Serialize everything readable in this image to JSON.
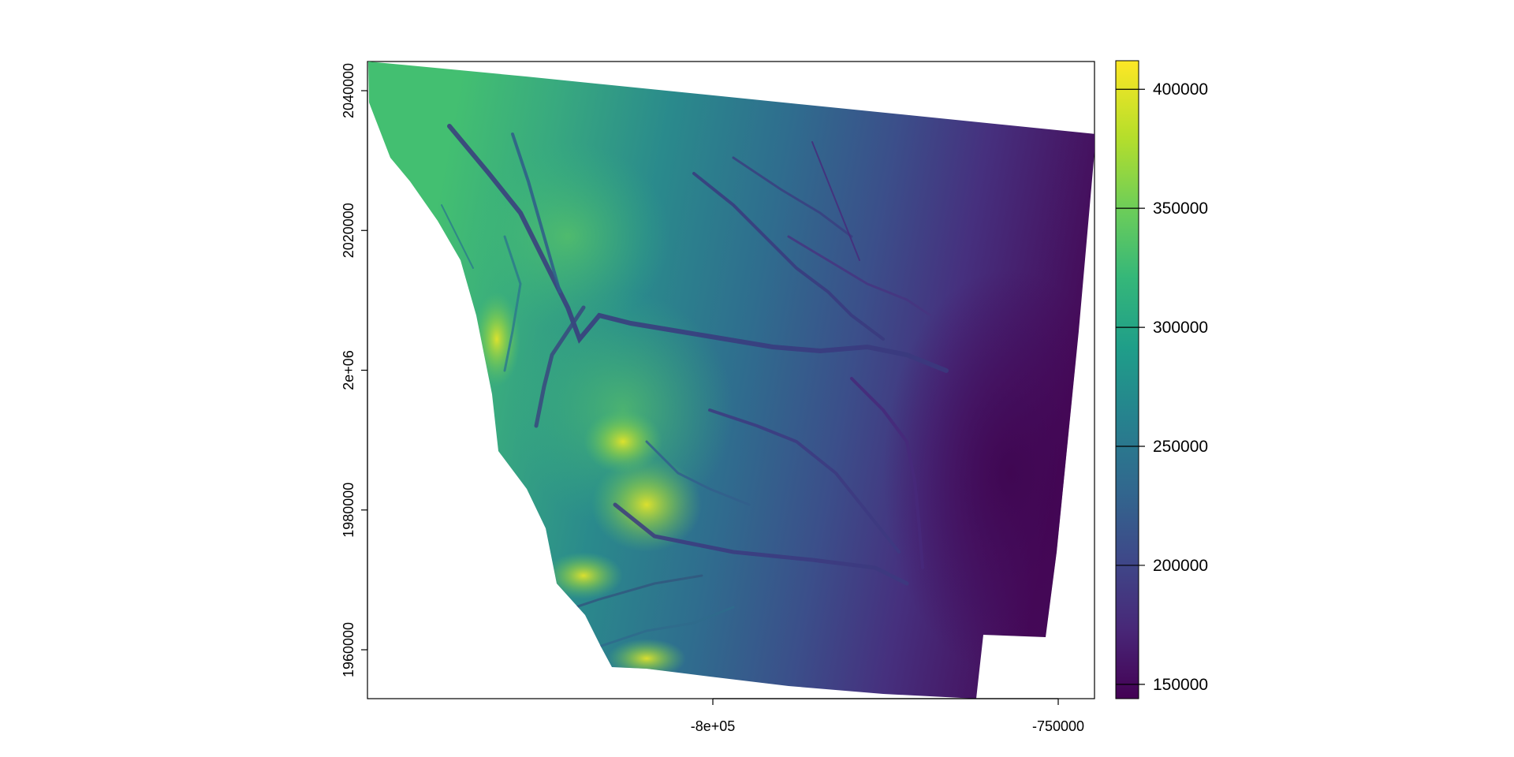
{
  "map": {
    "x_axis": {
      "ticks": [
        {
          "value": -800000,
          "label": "-8e+05"
        },
        {
          "value": -750000,
          "label": "-750000"
        }
      ]
    },
    "y_axis": {
      "ticks": [
        {
          "value": 1960000,
          "label": "1960000"
        },
        {
          "value": 1980000,
          "label": "1980000"
        },
        {
          "value": 2000000,
          "label": "2e+06"
        },
        {
          "value": 2020000,
          "label": "2020000"
        },
        {
          "value": 2040000,
          "label": "2040000"
        }
      ]
    },
    "legend": {
      "position": "right",
      "colormap": "viridis",
      "range": [
        144000,
        412000
      ],
      "ticks": [
        {
          "value": 150000,
          "label": "150000"
        },
        {
          "value": 200000,
          "label": "200000"
        },
        {
          "value": 250000,
          "label": "250000"
        },
        {
          "value": 300000,
          "label": "300000"
        },
        {
          "value": 350000,
          "label": "350000"
        },
        {
          "value": 400000,
          "label": "400000"
        }
      ],
      "colors": [
        "#440154",
        "#482878",
        "#3e4989",
        "#31688e",
        "#26828e",
        "#1f9e89",
        "#35b779",
        "#6ece58",
        "#b5de2b",
        "#fde725"
      ]
    }
  }
}
